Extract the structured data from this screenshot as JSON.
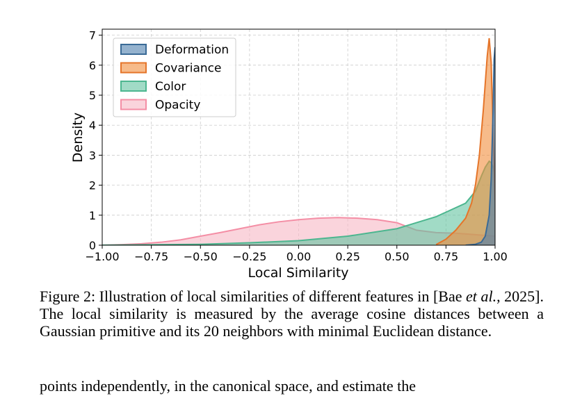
{
  "chart_data": {
    "type": "area",
    "xlabel": "Local Similarity",
    "ylabel": "Density",
    "xlim": [
      -1.0,
      1.0
    ],
    "ylim": [
      0,
      7.2
    ],
    "xticks": [
      "−1.00",
      "−0.75",
      "−0.50",
      "−0.25",
      "0.00",
      "0.25",
      "0.50",
      "0.75",
      "1.00"
    ],
    "yticks": [
      "0",
      "1",
      "2",
      "3",
      "4",
      "5",
      "6",
      "7"
    ],
    "grid": true,
    "legend_position": "top-left",
    "series": [
      {
        "name": "Deformation",
        "fill": "#4c7fae",
        "stroke": "#3a6a96",
        "x": [
          0.85,
          0.9,
          0.93,
          0.95,
          0.97,
          0.98,
          0.99,
          0.995,
          1.0
        ],
        "y": [
          0.0,
          0.03,
          0.1,
          0.3,
          1.0,
          2.2,
          4.5,
          6.2,
          6.6
        ]
      },
      {
        "name": "Covariance",
        "fill": "#f28d3c",
        "stroke": "#e5752a",
        "x": [
          0.7,
          0.75,
          0.8,
          0.85,
          0.88,
          0.9,
          0.92,
          0.94,
          0.95,
          0.96,
          0.97,
          0.98,
          0.99,
          1.0
        ],
        "y": [
          0.02,
          0.2,
          0.5,
          0.9,
          1.4,
          2.0,
          3.0,
          4.5,
          5.4,
          6.3,
          6.9,
          6.1,
          3.8,
          1.5
        ]
      },
      {
        "name": "Color",
        "fill": "#62c3a0",
        "stroke": "#4cb68f",
        "x": [
          -1.0,
          -0.5,
          -0.25,
          0.0,
          0.25,
          0.5,
          0.6,
          0.7,
          0.75,
          0.8,
          0.85,
          0.9,
          0.93,
          0.95,
          0.97,
          0.98,
          0.99,
          1.0
        ],
        "y": [
          0.0,
          0.03,
          0.08,
          0.15,
          0.3,
          0.55,
          0.75,
          0.95,
          1.1,
          1.25,
          1.4,
          1.8,
          2.3,
          2.6,
          2.8,
          2.75,
          2.6,
          2.3
        ]
      },
      {
        "name": "Opacity",
        "fill": "#f7b7c4",
        "stroke": "#f48ea5",
        "x": [
          -1.0,
          -0.9,
          -0.8,
          -0.7,
          -0.6,
          -0.5,
          -0.4,
          -0.3,
          -0.2,
          -0.1,
          0.0,
          0.1,
          0.2,
          0.3,
          0.4,
          0.5,
          0.6,
          0.7,
          0.8,
          0.9,
          1.0
        ],
        "y": [
          0.0,
          0.02,
          0.05,
          0.1,
          0.18,
          0.3,
          0.42,
          0.55,
          0.68,
          0.78,
          0.85,
          0.9,
          0.92,
          0.9,
          0.85,
          0.75,
          0.5,
          0.42,
          0.4,
          0.35,
          0.3
        ]
      }
    ]
  },
  "caption": {
    "label": "Figure 2:",
    "text_before_italic": " Illustration of local similarities of different features in [Bae ",
    "italic": "et al.",
    "text_after_italic": ", 2025]. The local similarity is measured by the average cosine distances between a Gaussian primitive and its 20 neighbors with minimal Euclidean distance."
  },
  "next_text": "points independently, in the canonical space, and estimate the"
}
